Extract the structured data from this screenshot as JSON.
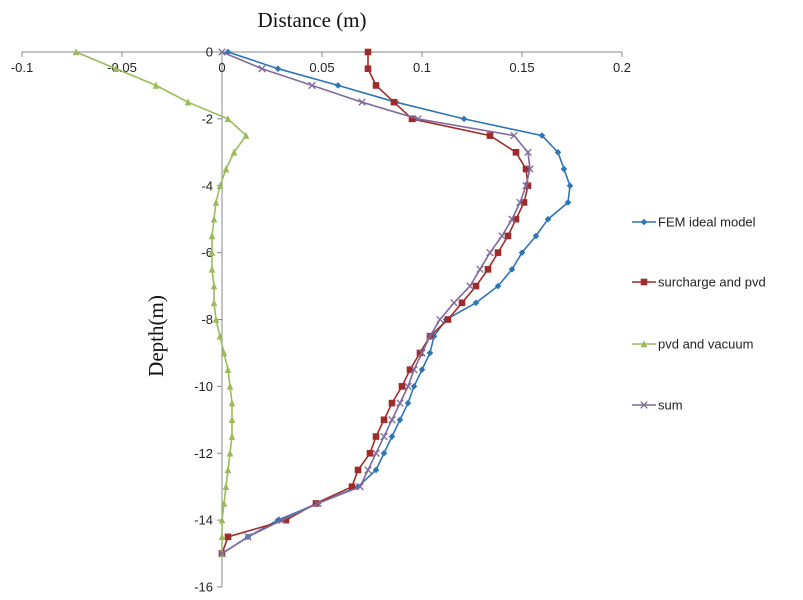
{
  "chart_data": {
    "type": "line",
    "xlabel": "Distance (m)",
    "ylabel": "Depth(m)",
    "xlim": [
      -0.1,
      0.2
    ],
    "ylim": [
      -16,
      0
    ],
    "x_ticks": [
      "-0.1",
      "-0.05",
      "0",
      "0.05",
      "0.1",
      "0.15",
      "0.2"
    ],
    "y_ticks": [
      "0",
      "-2",
      "-4",
      "-6",
      "-8",
      "-10",
      "-12",
      "-14",
      "-16"
    ],
    "grid": false,
    "legend_position": "right",
    "series": [
      {
        "name": "FEM ideal model",
        "color": "#2e75b6",
        "marker": "diamond",
        "points": [
          [
            0.003,
            0
          ],
          [
            0.028,
            -0.5
          ],
          [
            0.058,
            -1
          ],
          [
            0.087,
            -1.5
          ],
          [
            0.121,
            -2
          ],
          [
            0.16,
            -2.5
          ],
          [
            0.168,
            -3
          ],
          [
            0.171,
            -3.5
          ],
          [
            0.174,
            -4
          ],
          [
            0.173,
            -4.5
          ],
          [
            0.163,
            -5
          ],
          [
            0.157,
            -5.5
          ],
          [
            0.15,
            -6
          ],
          [
            0.145,
            -6.5
          ],
          [
            0.138,
            -7
          ],
          [
            0.127,
            -7.5
          ],
          [
            0.112,
            -8
          ],
          [
            0.106,
            -8.5
          ],
          [
            0.104,
            -9
          ],
          [
            0.1,
            -9.5
          ],
          [
            0.096,
            -10
          ],
          [
            0.093,
            -10.5
          ],
          [
            0.089,
            -11
          ],
          [
            0.085,
            -11.5
          ],
          [
            0.081,
            -12
          ],
          [
            0.077,
            -12.5
          ],
          [
            0.068,
            -13
          ],
          [
            0.048,
            -13.5
          ],
          [
            0.028,
            -14
          ],
          [
            0.013,
            -14.5
          ],
          [
            0.0,
            -15
          ]
        ]
      },
      {
        "name": "surcharge and pvd",
        "color": "#a02b2b",
        "marker": "square",
        "points": [
          [
            0.073,
            0
          ],
          [
            0.073,
            -0.5
          ],
          [
            0.077,
            -1
          ],
          [
            0.086,
            -1.5
          ],
          [
            0.095,
            -2
          ],
          [
            0.134,
            -2.5
          ],
          [
            0.147,
            -3
          ],
          [
            0.152,
            -3.5
          ],
          [
            0.153,
            -4
          ],
          [
            0.151,
            -4.5
          ],
          [
            0.147,
            -5
          ],
          [
            0.143,
            -5.5
          ],
          [
            0.138,
            -6
          ],
          [
            0.133,
            -6.5
          ],
          [
            0.127,
            -7
          ],
          [
            0.12,
            -7.5
          ],
          [
            0.113,
            -8
          ],
          [
            0.104,
            -8.5
          ],
          [
            0.099,
            -9
          ],
          [
            0.094,
            -9.5
          ],
          [
            0.09,
            -10
          ],
          [
            0.085,
            -10.5
          ],
          [
            0.081,
            -11
          ],
          [
            0.077,
            -11.5
          ],
          [
            0.074,
            -12
          ],
          [
            0.068,
            -12.5
          ],
          [
            0.065,
            -13
          ],
          [
            0.047,
            -13.5
          ],
          [
            0.032,
            -14
          ],
          [
            0.003,
            -14.5
          ],
          [
            0.0,
            -15
          ]
        ]
      },
      {
        "name": "pvd and vacuum",
        "color": "#9bbb59",
        "marker": "triangle",
        "points": [
          [
            -0.073,
            0
          ],
          [
            -0.053,
            -0.5
          ],
          [
            -0.033,
            -1
          ],
          [
            -0.017,
            -1.5
          ],
          [
            0.003,
            -2
          ],
          [
            0.012,
            -2.5
          ],
          [
            0.006,
            -3
          ],
          [
            0.002,
            -3.5
          ],
          [
            -0.001,
            -4
          ],
          [
            -0.003,
            -4.5
          ],
          [
            -0.004,
            -5
          ],
          [
            -0.005,
            -5.5
          ],
          [
            -0.005,
            -6
          ],
          [
            -0.005,
            -6.5
          ],
          [
            -0.004,
            -7
          ],
          [
            -0.004,
            -7.5
          ],
          [
            -0.003,
            -8
          ],
          [
            -0.001,
            -8.5
          ],
          [
            0.001,
            -9
          ],
          [
            0.003,
            -9.5
          ],
          [
            0.004,
            -10
          ],
          [
            0.005,
            -10.5
          ],
          [
            0.005,
            -11
          ],
          [
            0.005,
            -11.5
          ],
          [
            0.004,
            -12
          ],
          [
            0.003,
            -12.5
          ],
          [
            0.002,
            -13
          ],
          [
            0.001,
            -13.5
          ],
          [
            0.0,
            -14
          ],
          [
            0.0,
            -14.5
          ],
          [
            0.0,
            -15
          ]
        ]
      },
      {
        "name": "sum",
        "color": "#7f6a9b",
        "marker": "x",
        "points": [
          [
            0.0,
            0
          ],
          [
            0.02,
            -0.5
          ],
          [
            0.045,
            -1
          ],
          [
            0.07,
            -1.5
          ],
          [
            0.098,
            -2
          ],
          [
            0.146,
            -2.5
          ],
          [
            0.153,
            -3
          ],
          [
            0.154,
            -3.5
          ],
          [
            0.152,
            -4
          ],
          [
            0.149,
            -4.5
          ],
          [
            0.145,
            -5
          ],
          [
            0.14,
            -5.5
          ],
          [
            0.134,
            -6
          ],
          [
            0.129,
            -6.5
          ],
          [
            0.124,
            -7
          ],
          [
            0.116,
            -7.5
          ],
          [
            0.109,
            -8
          ],
          [
            0.104,
            -8.5
          ],
          [
            0.1,
            -9
          ],
          [
            0.096,
            -9.5
          ],
          [
            0.093,
            -10
          ],
          [
            0.089,
            -10.5
          ],
          [
            0.085,
            -11
          ],
          [
            0.081,
            -11.5
          ],
          [
            0.077,
            -12
          ],
          [
            0.073,
            -12.5
          ],
          [
            0.069,
            -13
          ],
          [
            0.048,
            -13.5
          ],
          [
            0.03,
            -14
          ],
          [
            0.013,
            -14.5
          ],
          [
            0.0,
            -15
          ]
        ]
      }
    ]
  }
}
